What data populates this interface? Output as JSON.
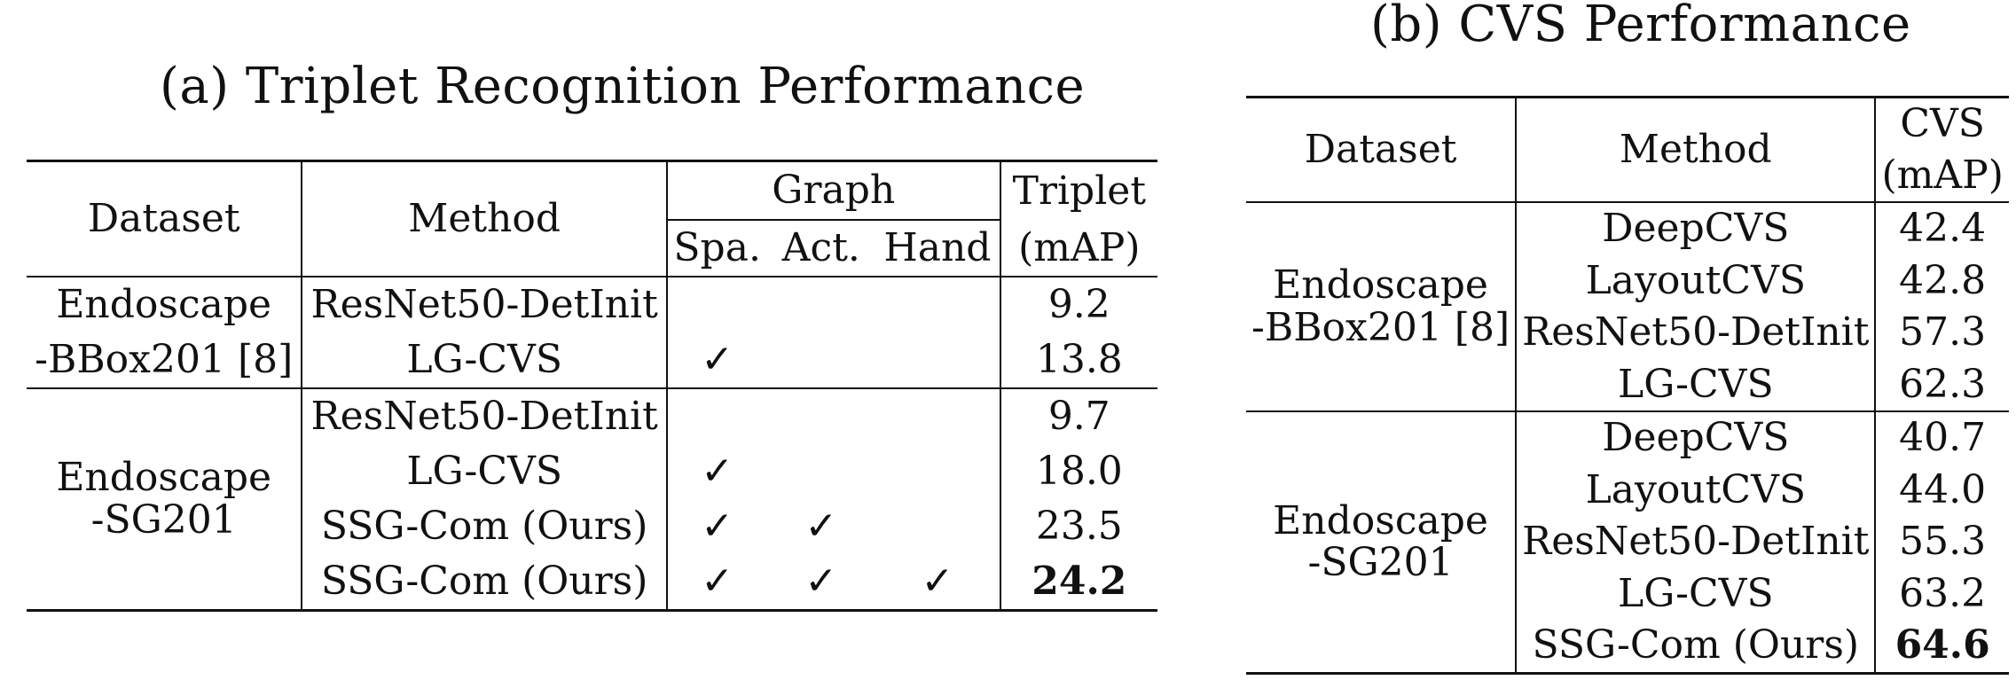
{
  "table_a": {
    "caption": "(a) Triplet Recognition Performance",
    "header": {
      "dataset": "Dataset",
      "method": "Method",
      "graph": "Graph",
      "spa": "Spa.",
      "act": "Act.",
      "hand": "Hand",
      "triplet_line1": "Triplet",
      "triplet_line2": "(mAP)"
    },
    "groups": [
      {
        "dataset_line1": "Endoscape",
        "dataset_line2": "-BBox201 [8]",
        "rows": [
          {
            "method": "ResNet50-DetInit",
            "spa": "",
            "act": "",
            "hand": "",
            "value": "9.2",
            "bold": false
          },
          {
            "method": "LG-CVS",
            "spa": "✓",
            "act": "",
            "hand": "",
            "value": "13.8",
            "bold": false
          }
        ]
      },
      {
        "dataset_line1": "Endoscape",
        "dataset_line2": "-SG201",
        "rows": [
          {
            "method": "ResNet50-DetInit",
            "spa": "",
            "act": "",
            "hand": "",
            "value": "9.7",
            "bold": false
          },
          {
            "method": "LG-CVS",
            "spa": "✓",
            "act": "",
            "hand": "",
            "value": "18.0",
            "bold": false
          },
          {
            "method": "SSG-Com (Ours)",
            "spa": "✓",
            "act": "✓",
            "hand": "",
            "value": "23.5",
            "bold": false
          },
          {
            "method": "SSG-Com (Ours)",
            "spa": "✓",
            "act": "✓",
            "hand": "✓",
            "value": "24.2",
            "bold": true
          }
        ]
      }
    ]
  },
  "table_b": {
    "caption": "(b) CVS Performance",
    "header": {
      "dataset": "Dataset",
      "method": "Method",
      "cvs_line1": "CVS",
      "cvs_line2": "(mAP)"
    },
    "groups": [
      {
        "dataset_line1": "Endoscape",
        "dataset_line2": "-BBox201 [8]",
        "rows": [
          {
            "method": "DeepCVS",
            "value": "42.4",
            "bold": false
          },
          {
            "method": "LayoutCVS",
            "value": "42.8",
            "bold": false
          },
          {
            "method": "ResNet50-DetInit",
            "value": "57.3",
            "bold": false
          },
          {
            "method": "LG-CVS",
            "value": "62.3",
            "bold": false
          }
        ]
      },
      {
        "dataset_line1": "Endoscape",
        "dataset_line2": "-SG201",
        "rows": [
          {
            "method": "DeepCVS",
            "value": "40.7",
            "bold": false
          },
          {
            "method": "LayoutCVS",
            "value": "44.0",
            "bold": false
          },
          {
            "method": "ResNet50-DetInit",
            "value": "55.3",
            "bold": false
          },
          {
            "method": "LG-CVS",
            "value": "63.2",
            "bold": false
          },
          {
            "method": "SSG-Com (Ours)",
            "value": "64.6",
            "bold": true
          }
        ]
      }
    ]
  }
}
